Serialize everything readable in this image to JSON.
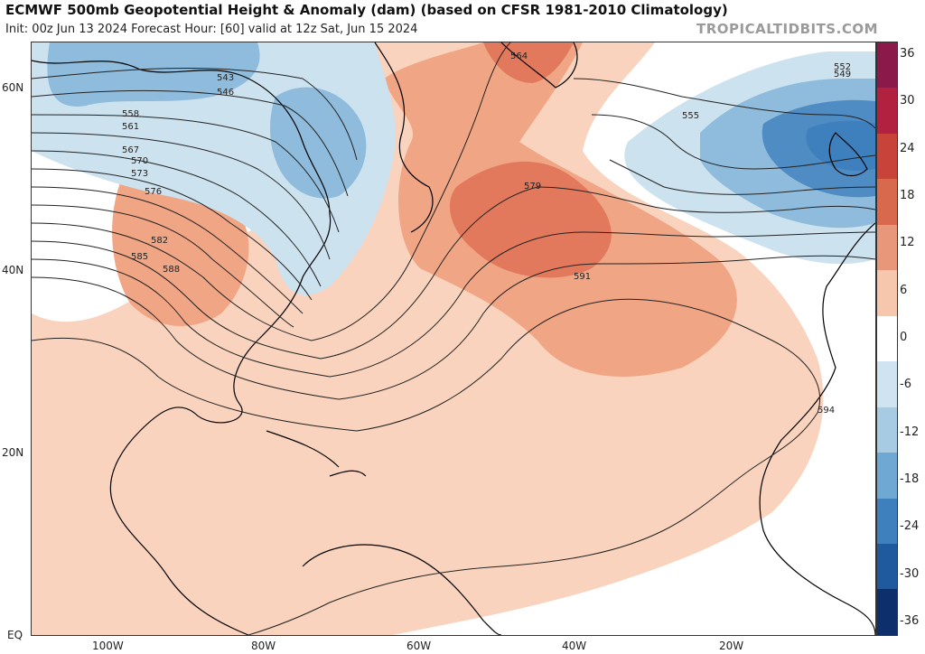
{
  "header": {
    "title": "ECMWF 500mb Geopotential Height & Anomaly (dam) (based on CFSR 1981-2010 Climatology)",
    "subtitle": "Init: 00z Jun 13 2024   Forecast Hour: [60]   valid at 12z Sat, Jun 15 2024",
    "brand": "TROPICALTIDBITS.COM"
  },
  "axes": {
    "lat_labels": [
      "60N",
      "40N",
      "20N",
      "EQ"
    ],
    "lon_labels": [
      "100W",
      "80W",
      "60W",
      "40W",
      "20W"
    ]
  },
  "colorbar": {
    "labels": [
      "36",
      "30",
      "24",
      "18",
      "12",
      "6",
      "0",
      "-6",
      "-12",
      "-18",
      "-24",
      "-30",
      "-36"
    ],
    "colors": [
      "#8b1a4a",
      "#b2213f",
      "#c8443a",
      "#d8694d",
      "#e8977a",
      "#f6c7ad",
      "#ffffff",
      "#cfe3f0",
      "#a6cbe3",
      "#6fa8d2",
      "#3e7fbd",
      "#1f5a9e",
      "#0d2f6b"
    ]
  },
  "colors": {
    "warm_light": "#f9d3bd",
    "warm_mid": "#f0a585",
    "warm_strong": "#e2785c",
    "cold_light": "#cde2ef",
    "cold_mid": "#8fbcdc",
    "cold_strong": "#4f8cc4",
    "contour": "#222222",
    "coast": "#000000"
  },
  "contour_labels": [
    {
      "text": "543"
    },
    {
      "text": "546"
    },
    {
      "text": "549"
    },
    {
      "text": "552"
    },
    {
      "text": "555"
    },
    {
      "text": "558"
    },
    {
      "text": "561"
    },
    {
      "text": "564"
    },
    {
      "text": "567"
    },
    {
      "text": "570"
    },
    {
      "text": "573"
    },
    {
      "text": "576"
    },
    {
      "text": "579"
    },
    {
      "text": "582"
    },
    {
      "text": "585"
    },
    {
      "text": "588"
    },
    {
      "text": "591"
    },
    {
      "text": "594"
    }
  ]
}
